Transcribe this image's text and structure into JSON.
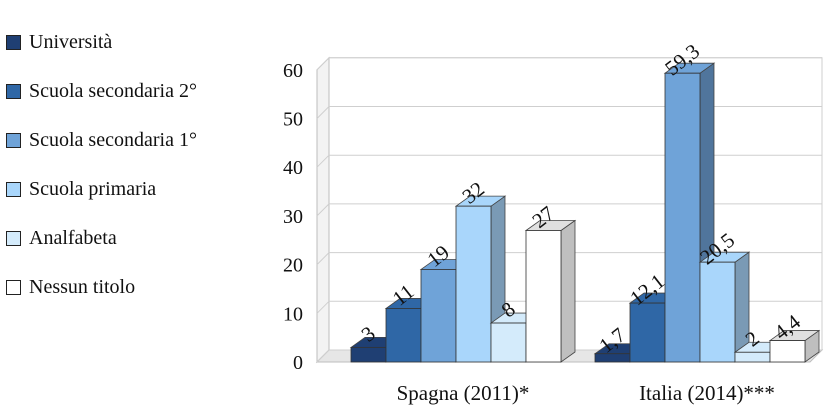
{
  "chart_data": {
    "type": "bar",
    "categories": [
      "Spagna (2011)*",
      "Italia (2014)***"
    ],
    "series": [
      {
        "name": "Università",
        "values": [
          3,
          1.7
        ],
        "labels": [
          "3",
          "1,7"
        ]
      },
      {
        "name": "Scuola secondaria 2°",
        "values": [
          11,
          12.1
        ],
        "labels": [
          "11",
          "12,1"
        ]
      },
      {
        "name": "Scuola secondaria 1°",
        "values": [
          19,
          59.3
        ],
        "labels": [
          "19",
          "59,3"
        ]
      },
      {
        "name": "Scuola primaria",
        "values": [
          32,
          20.5
        ],
        "labels": [
          "32",
          "20,5"
        ]
      },
      {
        "name": "Analfabeta",
        "values": [
          8,
          2
        ],
        "labels": [
          "8",
          "2"
        ]
      },
      {
        "name": "Nessun titolo",
        "values": [
          27,
          4.4
        ],
        "labels": [
          "27",
          "4,4"
        ]
      }
    ],
    "colors": [
      "#1f3f73",
      "#2f67a6",
      "#6fa3d8",
      "#a9d6fb",
      "#d4ebfb",
      "#ffffff"
    ],
    "ylim": [
      0,
      60
    ],
    "yticks": [
      0,
      10,
      20,
      30,
      40,
      50,
      60
    ],
    "grid": true,
    "legend": "left",
    "style": "3d"
  }
}
